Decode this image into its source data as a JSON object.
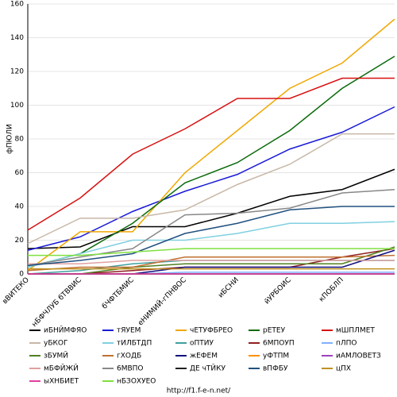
{
  "chart_data": {
    "type": "line",
    "ylabel": "фПЮЛИ",
    "footer": "http://f1.f-e-n.net/",
    "categories": [
      "вВИТЕКО",
      "нБФЧЛУБ бТВВИС",
      "бЧФТБМИС",
      "еНИМИЙ-гПНВОС",
      "иБСНИ",
      "йУРБОИС",
      "кПОБЛП",
      null
    ],
    "ylim": [
      0,
      160
    ],
    "yticks": [
      0,
      20,
      40,
      60,
      80,
      100,
      120,
      140,
      160
    ],
    "grid": true,
    "series": [
      {
        "name": "иБНЙМФЯО",
        "color": "#000000",
        "values": [
          15,
          16,
          28,
          28,
          36,
          46,
          50,
          62
        ]
      },
      {
        "name": "тЯУЕМ",
        "color": "#1a1ad8",
        "values": [
          14,
          22,
          37,
          49,
          59,
          74,
          84,
          99
        ]
      },
      {
        "name": "чЕТУФБРЕО",
        "color": "#f0a800",
        "values": [
          2,
          25,
          25,
          60,
          85,
          110,
          125,
          151
        ]
      },
      {
        "name": "рЕТЕУ",
        "color": "#0a6a0a",
        "values": [
          4,
          12,
          30,
          54,
          66,
          85,
          110,
          129
        ]
      },
      {
        "name": "мШПЛМЕТ",
        "color": "#d81010",
        "values": [
          26,
          45,
          71,
          86,
          104,
          104,
          116,
          116
        ]
      },
      {
        "name": "уБКОГ",
        "color": "#c8b8a8",
        "values": [
          18,
          33,
          33,
          38,
          53,
          65,
          83,
          83
        ]
      },
      {
        "name": "тИЛБТДП",
        "color": "#80d0e0",
        "values": [
          4,
          12,
          20,
          20,
          24,
          30,
          30,
          31
        ]
      },
      {
        "name": "оПТИУ",
        "color": "#40a0a0",
        "values": [
          0,
          2,
          6,
          8,
          8,
          8,
          8,
          8
        ]
      },
      {
        "name": "6МПОУП",
        "color": "#902020",
        "values": [
          0,
          0,
          2,
          4,
          4,
          4,
          10,
          15
        ]
      },
      {
        "name": "пЛПО",
        "color": "#80b0ff",
        "values": [
          0,
          0,
          0,
          1,
          1,
          1,
          1,
          1
        ]
      },
      {
        "name": "зБУМЙ",
        "color": "#508020",
        "values": [
          0,
          0,
          4,
          6,
          6,
          6,
          6,
          16
        ]
      },
      {
        "name": "гХОДБ",
        "color": "#c07030",
        "values": [
          2,
          4,
          4,
          10,
          10,
          10,
          10,
          11
        ]
      },
      {
        "name": "жЕФЕМ",
        "color": "#101080",
        "values": [
          0,
          0,
          0,
          4,
          4,
          4,
          4,
          14
        ]
      },
      {
        "name": "уФТПМ",
        "color": "#ff9000",
        "values": [
          0,
          0,
          0,
          0,
          0,
          0,
          0,
          0
        ]
      },
      {
        "name": "иАМЛОВЕТЗ",
        "color": "#a040c0",
        "values": [
          0,
          0,
          0,
          0,
          0,
          0,
          0,
          0
        ]
      },
      {
        "name": "мБФЙЖЙ",
        "color": "#e0a0a0",
        "values": [
          6,
          6,
          8,
          8,
          8,
          8,
          8,
          8
        ]
      },
      {
        "name": "6МВПО",
        "color": "#888888",
        "values": [
          5,
          10,
          15,
          35,
          36,
          39,
          48,
          50
        ]
      },
      {
        "name": "ДЕ чТЙКУ",
        "color": "#202020",
        "values": [
          0,
          0,
          0,
          0,
          0,
          0,
          0,
          0
        ]
      },
      {
        "name": "вПФБУ",
        "color": "#205080",
        "values": [
          5,
          8,
          12,
          24,
          30,
          38,
          40,
          40
        ]
      },
      {
        "name": "цПХ",
        "color": "#c09020",
        "values": [
          3,
          3,
          3,
          3,
          3,
          3,
          3,
          3
        ]
      },
      {
        "name": "ыХНБИЕТ",
        "color": "#e040a0",
        "values": [
          0,
          0,
          0,
          0,
          0,
          0,
          0,
          0
        ]
      },
      {
        "name": "нБЗОХУЕО",
        "color": "#80e040",
        "values": [
          11,
          11,
          13,
          15,
          15,
          15,
          15,
          15
        ]
      }
    ]
  }
}
